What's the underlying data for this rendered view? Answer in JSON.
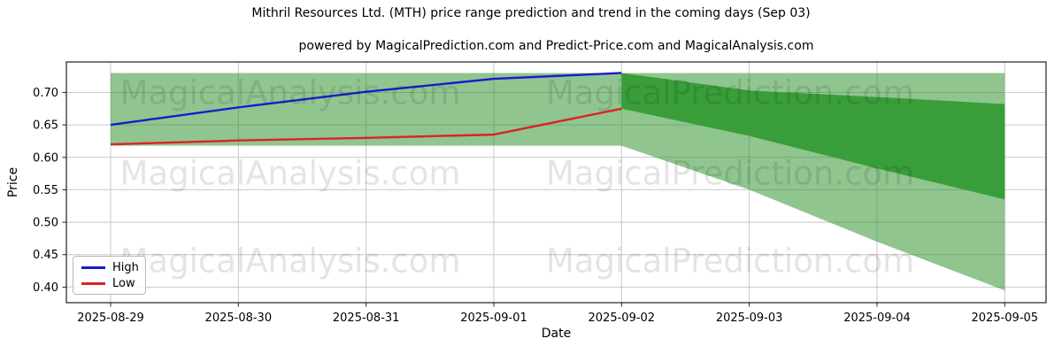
{
  "header": {
    "title": "Mithril Resources Ltd. (MTH) price range prediction and trend in the coming days (Sep 03)",
    "subtitle": "powered by MagicalPrediction.com and Predict-Price.com and MagicalAnalysis.com"
  },
  "axes": {
    "x_label": "Date",
    "y_label": "Price",
    "x_ticks": [
      "2025-08-29",
      "2025-08-30",
      "2025-08-31",
      "2025-09-01",
      "2025-09-02",
      "2025-09-03",
      "2025-09-04",
      "2025-09-05"
    ],
    "y_ticks": [
      "0.70",
      "0.65",
      "0.60",
      "0.55",
      "0.50",
      "0.45",
      "0.40"
    ]
  },
  "legend": {
    "items": [
      {
        "label": "High",
        "color": "#1a1acd"
      },
      {
        "label": "Low",
        "color": "#dd2222"
      }
    ]
  },
  "watermarks": {
    "left": "MagicalAnalysis.com",
    "right": "MagicalPrediction.com"
  },
  "colors": {
    "grid": "#c8c8c8",
    "spine": "#1f1f1f",
    "tick": "#1f1f1f",
    "band_green": "#228B22",
    "forecast_inner_green": "#399e39",
    "high_line": "#1a1acd",
    "low_line": "#dd2222"
  },
  "chart_data": {
    "type": "line",
    "title": "Mithril Resources Ltd. (MTH) price range prediction and trend in the coming days (Sep 03)",
    "xlabel": "Date",
    "ylabel": "Price",
    "x": [
      "2025-08-29",
      "2025-08-30",
      "2025-08-31",
      "2025-09-01",
      "2025-09-02",
      "2025-09-03",
      "2025-09-04",
      "2025-09-05"
    ],
    "ylim": [
      0.376,
      0.747
    ],
    "grid": true,
    "legend_position": "lower left",
    "series": [
      {
        "name": "High",
        "color": "#1a1acd",
        "x": [
          "2025-08-29",
          "2025-08-30",
          "2025-08-31",
          "2025-09-01",
          "2025-09-02"
        ],
        "values": [
          0.65,
          0.677,
          0.701,
          0.721,
          0.73
        ]
      },
      {
        "name": "Low",
        "color": "#dd2222",
        "x": [
          "2025-08-29",
          "2025-08-30",
          "2025-08-31",
          "2025-09-01",
          "2025-09-02"
        ],
        "values": [
          0.62,
          0.626,
          0.63,
          0.635,
          0.675
        ]
      }
    ],
    "bands": [
      {
        "name": "history-range",
        "fill": "#228B22",
        "fill_opacity": 0.5,
        "x": [
          "2025-08-29",
          "2025-09-02"
        ],
        "top": [
          0.73,
          0.73
        ],
        "bottom": [
          0.618,
          0.618
        ]
      },
      {
        "name": "forecast-range-outer",
        "fill": "#228B22",
        "fill_opacity": 0.5,
        "x": [
          "2025-09-02",
          "2025-09-03",
          "2025-09-04",
          "2025-09-05"
        ],
        "top": [
          0.73,
          0.73,
          0.73,
          0.73
        ],
        "bottom": [
          0.618,
          0.55,
          0.47,
          0.395
        ]
      },
      {
        "name": "forecast-range-inner",
        "fill": "#399e39",
        "fill_opacity": 1.0,
        "x": [
          "2025-09-02",
          "2025-09-03",
          "2025-09-04",
          "2025-09-05"
        ],
        "top": [
          0.73,
          0.703,
          0.693,
          0.682
        ],
        "bottom": [
          0.675,
          0.633,
          0.583,
          0.535
        ]
      }
    ]
  }
}
